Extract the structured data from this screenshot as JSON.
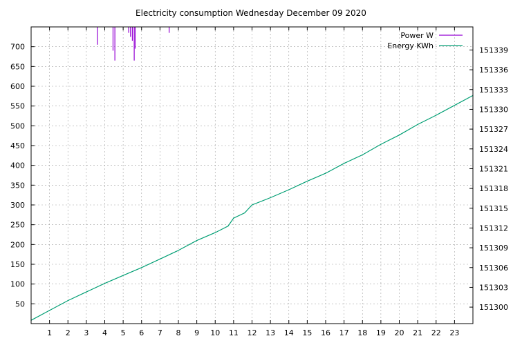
{
  "chart_data": {
    "type": "line",
    "title": "Electricity consumption Wednesday December 09 2020",
    "x": {
      "range": [
        0,
        24
      ],
      "ticks": [
        1,
        2,
        3,
        4,
        5,
        6,
        7,
        8,
        9,
        10,
        11,
        12,
        13,
        14,
        15,
        16,
        17,
        18,
        19,
        20,
        21,
        22,
        23
      ]
    },
    "y_left": {
      "range": [
        0,
        750
      ],
      "ticks": [
        50,
        100,
        150,
        200,
        250,
        300,
        350,
        400,
        450,
        500,
        550,
        600,
        650,
        700
      ]
    },
    "y_right": {
      "range": [
        151297.5,
        151342.5
      ],
      "ticks": [
        151300,
        151303,
        151306,
        151309,
        151312,
        151315,
        151318,
        151321,
        151324,
        151327,
        151330,
        151333,
        151336,
        151339
      ]
    },
    "grid": true,
    "legend_position": "top-right",
    "series": [
      {
        "name": "Power W",
        "axis": "left",
        "color": "#9400d3",
        "style": "impulses",
        "points": [
          [
            3.6,
            705
          ],
          [
            4.45,
            690
          ],
          [
            4.55,
            665
          ],
          [
            5.3,
            735
          ],
          [
            5.4,
            725
          ],
          [
            5.5,
            715
          ],
          [
            5.6,
            665
          ],
          [
            5.65,
            695
          ],
          [
            7.5,
            735
          ]
        ]
      },
      {
        "name": "Energy KWh",
        "axis": "right",
        "color": "#009e73",
        "style": "line",
        "points": [
          [
            0,
            151298.0
          ],
          [
            1,
            151299.5
          ],
          [
            2,
            151301.0
          ],
          [
            3,
            151302.3
          ],
          [
            4,
            151303.6
          ],
          [
            5,
            151304.8
          ],
          [
            6,
            151306.0
          ],
          [
            7,
            151307.3
          ],
          [
            8,
            151308.6
          ],
          [
            9,
            151310.1
          ],
          [
            10,
            151311.3
          ],
          [
            10.7,
            151312.3
          ],
          [
            11,
            151313.5
          ],
          [
            11.6,
            151314.3
          ],
          [
            12,
            151315.5
          ],
          [
            13,
            151316.6
          ],
          [
            14,
            151317.8
          ],
          [
            15,
            151319.1
          ],
          [
            16,
            151320.3
          ],
          [
            17,
            151321.8
          ],
          [
            18,
            151323.1
          ],
          [
            19,
            151324.7
          ],
          [
            20,
            151326.1
          ],
          [
            21,
            151327.7
          ],
          [
            22,
            151329.1
          ],
          [
            23,
            151330.6
          ],
          [
            24,
            151332.1
          ]
        ]
      }
    ]
  }
}
